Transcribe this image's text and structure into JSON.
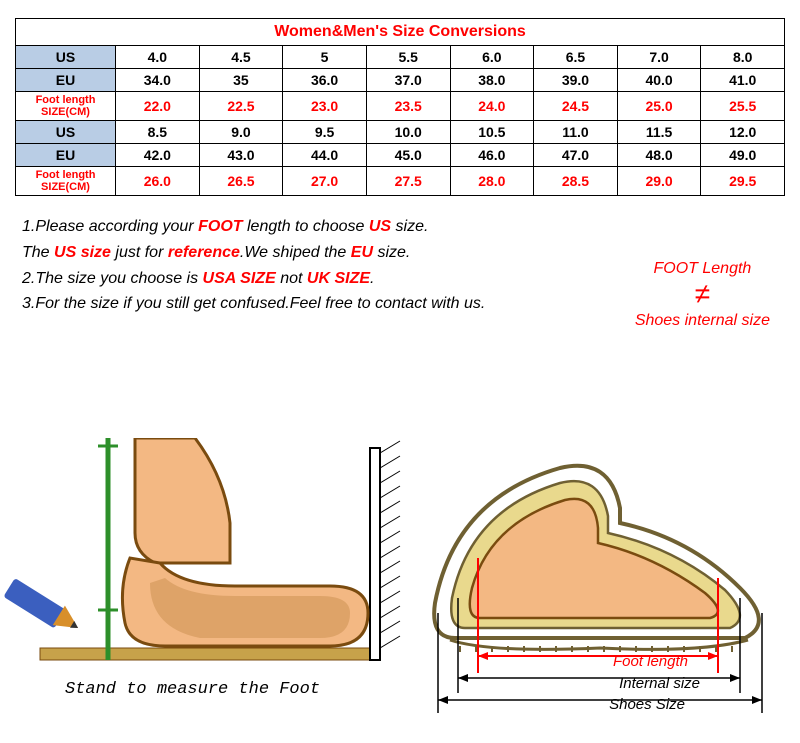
{
  "title": "Women&Men's Size Conversions",
  "headers": {
    "us": "US",
    "eu": "EU",
    "foot1": "Foot length",
    "foot2": "SIZE(CM)"
  },
  "row_us_1": [
    "4.0",
    "4.5",
    "5",
    "5.5",
    "6.0",
    "6.5",
    "7.0",
    "8.0"
  ],
  "row_eu_1": [
    "34.0",
    "35",
    "36.0",
    "37.0",
    "38.0",
    "39.0",
    "40.0",
    "41.0"
  ],
  "row_foot_1": [
    "22.0",
    "22.5",
    "23.0",
    "23.5",
    "24.0",
    "24.5",
    "25.0",
    "25.5"
  ],
  "row_us_2": [
    "8.5",
    "9.0",
    "9.5",
    "10.0",
    "10.5",
    "11.0",
    "11.5",
    "12.0"
  ],
  "row_eu_2": [
    "42.0",
    "43.0",
    "44.0",
    "45.0",
    "46.0",
    "47.0",
    "48.0",
    "49.0"
  ],
  "row_foot_2": [
    "26.0",
    "26.5",
    "27.0",
    "27.5",
    "28.0",
    "28.5",
    "29.0",
    "29.5"
  ],
  "notes": {
    "n1a": "1.Please according your ",
    "n1b": "FOOT",
    "n1c": " length to choose ",
    "n1d": "US",
    "n1e": " size.",
    "n2a": "The ",
    "n2b": "US size",
    "n2c": "  just for ",
    "n2d": "reference",
    "n2e": ".We shiped the ",
    "n2f": "EU",
    "n2g": " size.",
    "n3a": "2.The size you choose is ",
    "n3b": "USA SIZE",
    "n3c": " not ",
    "n3d": "UK SIZE",
    "n3e": ".",
    "n4": "3.For the size if you still get confused.Feel free to contact with us."
  },
  "side": {
    "t1": "FOOT Length",
    "ne": "≠",
    "t2": "Shoes internal size"
  },
  "captions": {
    "leftBottom": "Stand to measure the Foot",
    "footLen": "Foot length",
    "internal": "Internal size",
    "shoes": "Shoes Size"
  },
  "colors": {
    "skin": "#f3b883",
    "skinDark": "#b67b36",
    "footDark": "#7a4b0f",
    "sole": "#e9d98d",
    "shoeLine": "#6f6032",
    "pencilBlue": "#3b5fbf",
    "pencilTip": "#d88f2a",
    "green": "#2d8f2a",
    "red": "#ff0000",
    "floor": "#c7a24a"
  }
}
